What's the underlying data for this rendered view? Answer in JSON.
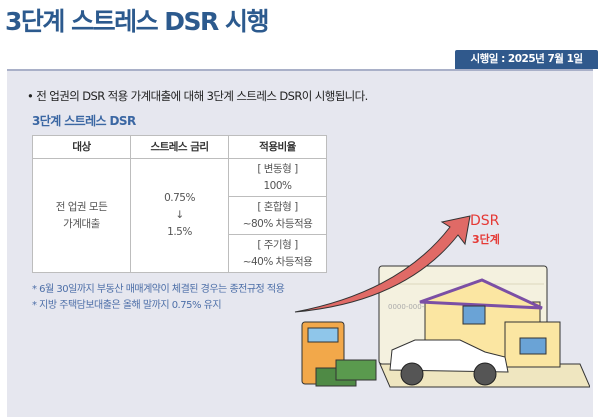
{
  "title": "3단계 스트레스 DSR 시행",
  "badge": "시행일 : 2025년 7월 1일",
  "lead": "• 전 업권의 DSR 적용 가계대출에 대해 3단계 스트레스 DSR이 시행됩니다.",
  "subtitle": "3단계 스트레스 DSR",
  "table": {
    "headers": [
      "대상",
      "스트레스 금리",
      "적용비율"
    ],
    "target": [
      "전 업권 모든",
      "가계대출"
    ],
    "rate": {
      "from": "0.75%",
      "arrow": "↓",
      "to": "1.5%"
    },
    "ratios": [
      [
        "[ 변동형 ]",
        "100%"
      ],
      [
        "[ 혼합형 ]",
        "~80% 차등적용"
      ],
      [
        "[ 주기형 ]",
        "~40% 차등적용"
      ]
    ]
  },
  "notes": [
    "* 6월 30일까지 부동산 매매계약이 체결된 경우는 종전규정 적용",
    "* 지방 주택담보대출은 올해 말까지 0.75% 유지"
  ],
  "illustration": {
    "label1": "DSR",
    "label2": "3단계",
    "account": "0000-000-00",
    "arrow_color": "#e06a66"
  }
}
